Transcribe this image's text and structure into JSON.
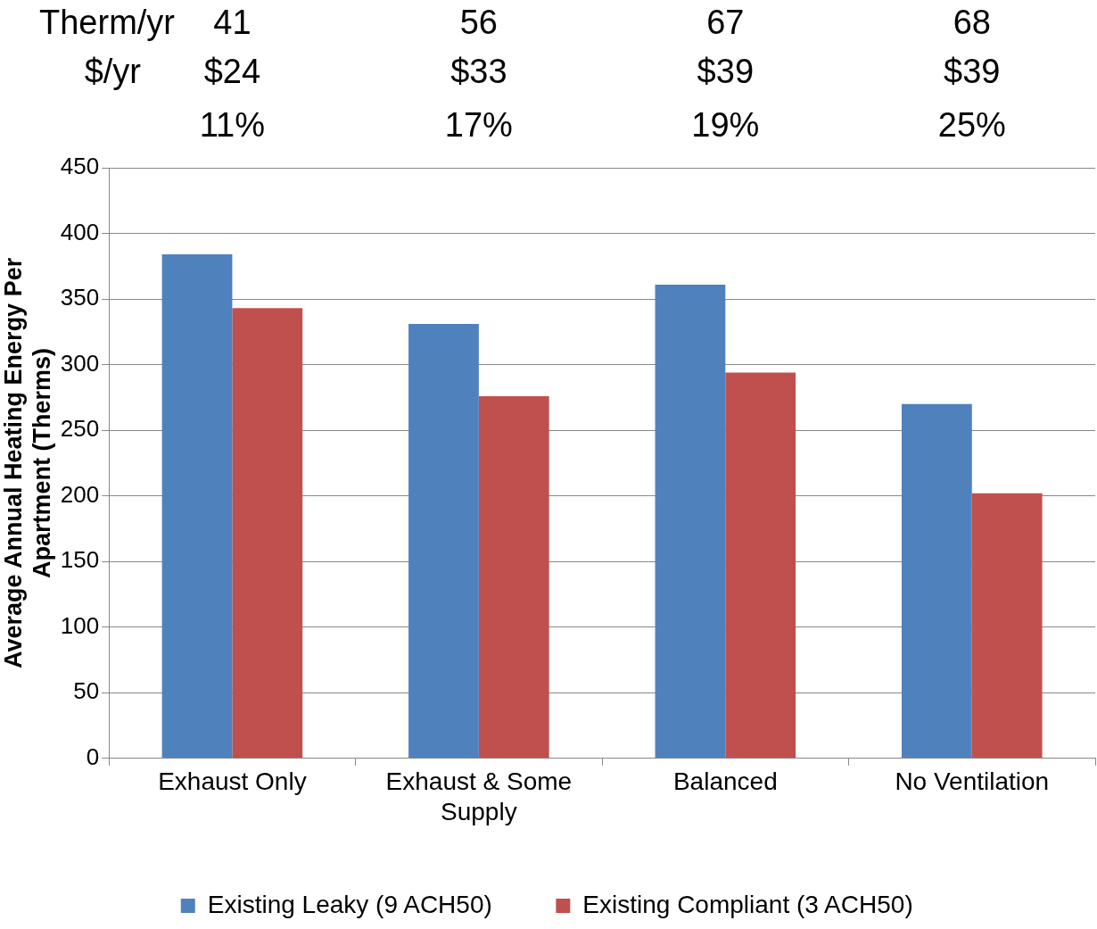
{
  "chart_data": {
    "type": "bar",
    "ylabel": "Average Annual Heating Energy Per Apartment (Therms)",
    "categories": [
      "Exhaust Only",
      "Exhaust & Some Supply",
      "Balanced",
      "No Ventilation"
    ],
    "series": [
      {
        "name": "Existing Leaky (9 ACH50)",
        "color": "#4f81bd",
        "values": [
          384,
          331,
          361,
          270
        ]
      },
      {
        "name": "Existing Compliant (3 ACH50)",
        "color": "#c0504d",
        "values": [
          343,
          276,
          294,
          202
        ]
      }
    ],
    "ylim": [
      0,
      450
    ],
    "yticks": [
      0,
      50,
      100,
      150,
      200,
      250,
      300,
      350,
      400,
      450
    ],
    "grid": "y",
    "legend": "bottom",
    "annotations": [
      "Therm/yr",
      "41",
      "56",
      "67",
      "68",
      "$/yr",
      "$24",
      "$33",
      "$39",
      "$39",
      "11%",
      "17%",
      "19%",
      "25%"
    ]
  }
}
